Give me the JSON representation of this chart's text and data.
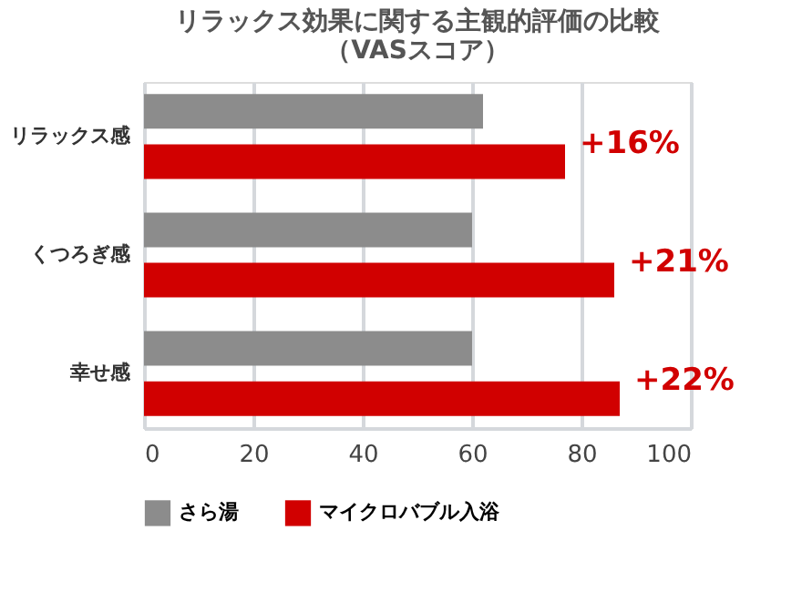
{
  "chart_data": {
    "type": "bar",
    "orientation": "horizontal",
    "title": "リラックス効果に関する主観的評価の比較（VASスコア）",
    "categories": [
      "リラックス感",
      "くつろぎ感",
      "幸せ感"
    ],
    "series": [
      {
        "name": "さら湯",
        "color": "#8c8c8c",
        "values": [
          62,
          60,
          60
        ]
      },
      {
        "name": "マイクロバブル入浴",
        "color": "#d10000",
        "values": [
          77,
          86,
          87
        ]
      }
    ],
    "xlim": [
      0,
      100
    ],
    "xticks": [
      0,
      20,
      40,
      60,
      80,
      100
    ],
    "grid": "x",
    "legend": "bottom left",
    "annotations": [
      {
        "text": "+16%",
        "x": 77,
        "y": "リラックス感"
      },
      {
        "text": "+21%",
        "x": 86,
        "y": "くつろぎ感"
      },
      {
        "text": "+22%",
        "x": 87,
        "y": "幸せ感"
      }
    ]
  }
}
